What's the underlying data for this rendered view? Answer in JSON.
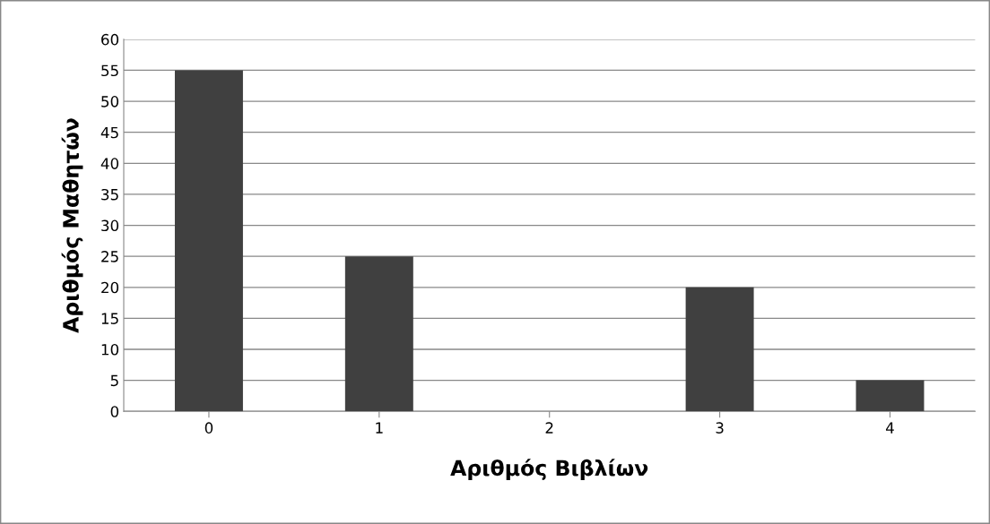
{
  "chart_data": {
    "type": "bar",
    "xlabel": "Αριθμός Βιβλίων",
    "ylabel": "Αριθμός Μαθητών",
    "categories": [
      "0",
      "1",
      "2",
      "3",
      "4"
    ],
    "values": [
      55,
      25,
      0,
      20,
      5
    ],
    "color": "#404040",
    "ylim": [
      0,
      60
    ],
    "yticks": [
      0,
      5,
      10,
      15,
      20,
      25,
      30,
      35,
      40,
      45,
      50,
      55,
      60
    ],
    "grid": "y",
    "legend": false
  }
}
